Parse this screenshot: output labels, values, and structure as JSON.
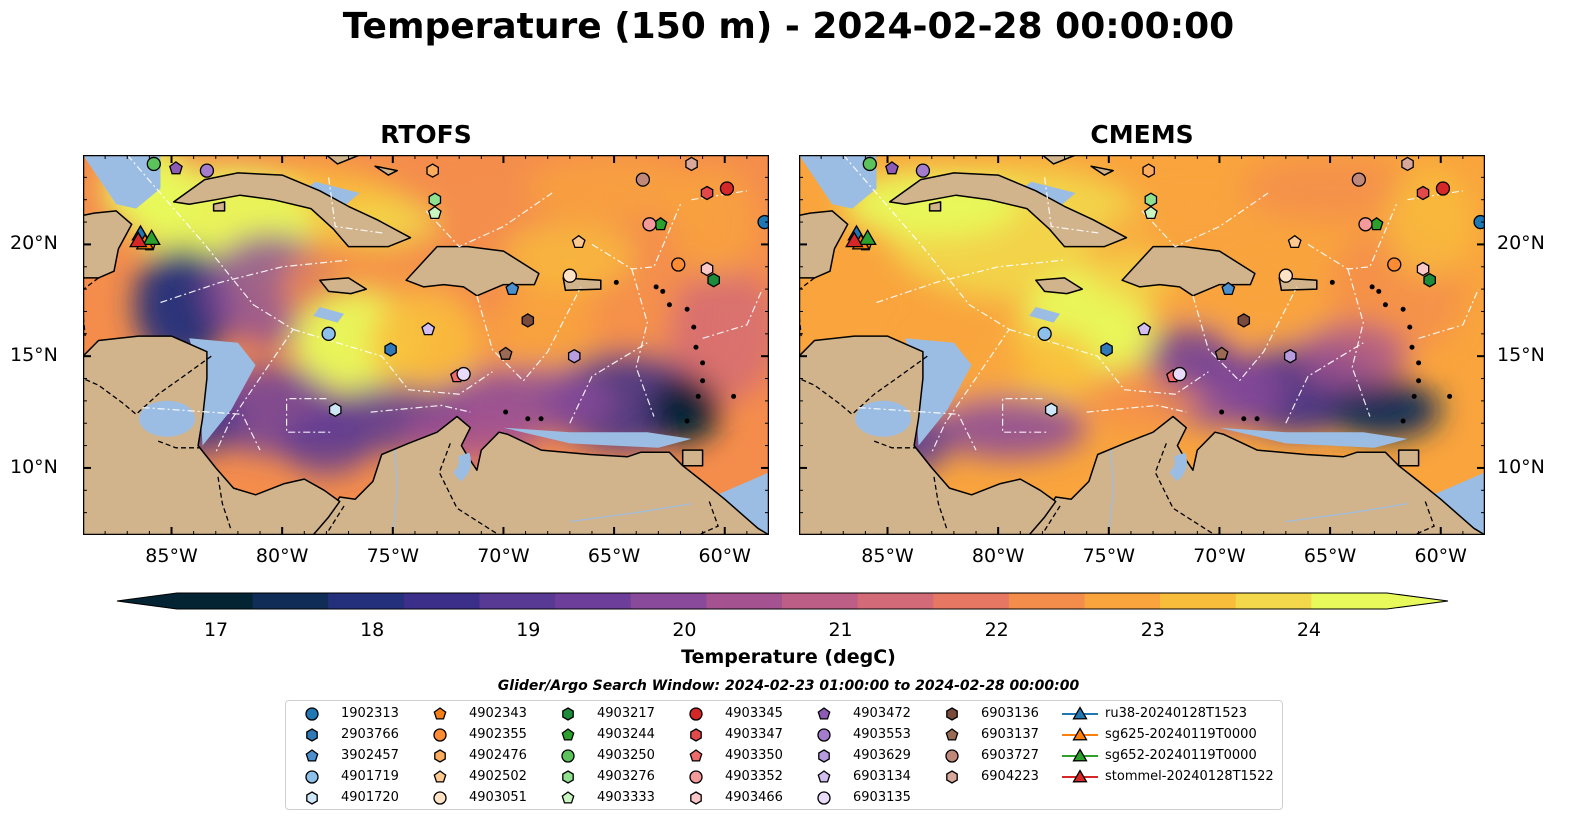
{
  "title": "Temperature (150 m) - 2024-02-28 00:00:00",
  "panels": [
    {
      "title": "RTOFS",
      "variant": "rtofs"
    },
    {
      "title": "CMEMS",
      "variant": "cmems"
    }
  ],
  "axes": {
    "lon_ticks": [
      "85°W",
      "80°W",
      "75°W",
      "70°W",
      "65°W",
      "60°W"
    ],
    "lat_ticks": [
      "20°N",
      "15°N",
      "10°N"
    ],
    "lon_values": [
      -85,
      -80,
      -75,
      -70,
      -65,
      -60
    ],
    "lat_values": [
      20,
      15,
      10
    ],
    "lon_range": [
      -89,
      -58
    ],
    "lat_range": [
      7,
      24
    ]
  },
  "colorbar": {
    "label": "Temperature (degC)",
    "ticks": [
      "17",
      "18",
      "19",
      "20",
      "21",
      "22",
      "23",
      "24"
    ],
    "tick_values": [
      17,
      18,
      19,
      20,
      21,
      22,
      23,
      24
    ],
    "range": [
      16.75,
      24.5
    ],
    "extend": "both",
    "colormap": "thermal",
    "colors": [
      "#042333",
      "#0f2d56",
      "#24307b",
      "#3b2f8a",
      "#583a95",
      "#6e3f9a",
      "#8a4a9b",
      "#a45290",
      "#bc5e85",
      "#d36a77",
      "#e67762",
      "#f48d4c",
      "#f9a43d",
      "#f9bd3c",
      "#f2d84a",
      "#e8fa5b"
    ]
  },
  "search_window": "Glider/Argo Search Window: 2024-02-23 01:00:00 to 2024-02-28 00:00:00",
  "legend": [
    {
      "label": "1902313",
      "marker": "circle",
      "color": "#1f77b4"
    },
    {
      "label": "2903766",
      "marker": "hexagon",
      "color": "#2f79b8"
    },
    {
      "label": "3902457",
      "marker": "pentagon",
      "color": "#4a8fce"
    },
    {
      "label": "4901719",
      "marker": "circle",
      "color": "#8dc0ea"
    },
    {
      "label": "4901720",
      "marker": "hexagon",
      "color": "#cfe6f7"
    },
    {
      "label": "4902343",
      "marker": "pentagon",
      "color": "#f57f17"
    },
    {
      "label": "4902355",
      "marker": "circle",
      "color": "#fb8c34"
    },
    {
      "label": "4902476",
      "marker": "hexagon",
      "color": "#fdab5c"
    },
    {
      "label": "4902502",
      "marker": "pentagon",
      "color": "#fdc98f"
    },
    {
      "label": "4903051",
      "marker": "circle",
      "color": "#fde2c6"
    },
    {
      "label": "4903217",
      "marker": "hexagon",
      "color": "#1e8b3a"
    },
    {
      "label": "4903244",
      "marker": "pentagon",
      "color": "#2ca02c"
    },
    {
      "label": "4903250",
      "marker": "circle",
      "color": "#5cc25c"
    },
    {
      "label": "4903276",
      "marker": "hexagon",
      "color": "#8fe08f"
    },
    {
      "label": "4903333",
      "marker": "pentagon",
      "color": "#c8f5c0"
    },
    {
      "label": "4903345",
      "marker": "circle",
      "color": "#d62728"
    },
    {
      "label": "4903347",
      "marker": "hexagon",
      "color": "#e24a4a"
    },
    {
      "label": "4903350",
      "marker": "pentagon",
      "color": "#ef6a6a"
    },
    {
      "label": "4903352",
      "marker": "circle",
      "color": "#f59a9a"
    },
    {
      "label": "4903466",
      "marker": "hexagon",
      "color": "#fbc8c8"
    },
    {
      "label": "4903472",
      "marker": "pentagon",
      "color": "#8c5bb5"
    },
    {
      "label": "4903553",
      "marker": "circle",
      "color": "#a37ccc"
    },
    {
      "label": "4903629",
      "marker": "hexagon",
      "color": "#b99be0"
    },
    {
      "label": "6903134",
      "marker": "pentagon",
      "color": "#d2bff0"
    },
    {
      "label": "6903135",
      "marker": "circle",
      "color": "#e8dcfa"
    },
    {
      "label": "6903136",
      "marker": "hexagon",
      "color": "#7a4a3a"
    },
    {
      "label": "6903137",
      "marker": "pentagon",
      "color": "#9a6a55"
    },
    {
      "label": "6903727",
      "marker": "circle",
      "color": "#c08878"
    },
    {
      "label": "6904223",
      "marker": "hexagon",
      "color": "#d8a89a"
    },
    {
      "label": "ru38-20240128T1523",
      "marker": "triangle-line",
      "color": "#1f77b4"
    },
    {
      "label": "sg625-20240119T0000",
      "marker": "triangle-line",
      "color": "#ff7f0e"
    },
    {
      "label": "sg652-20240119T0000",
      "marker": "triangle-line",
      "color": "#2ca02c"
    },
    {
      "label": "stommel-20240128T1522",
      "marker": "triangle-line",
      "color": "#d62728"
    }
  ],
  "map_colors": {
    "land": "#d2b48c",
    "ocean": "#9cbde3",
    "border": "#000000",
    "eez": "#ffffff"
  },
  "platforms": [
    {
      "id": "1902313",
      "lon": -58.2,
      "lat": 21.0
    },
    {
      "id": "2903766",
      "lon": -75.1,
      "lat": 15.3
    },
    {
      "id": "3902457",
      "lon": -69.6,
      "lat": 18.0
    },
    {
      "id": "4901719",
      "lon": -77.9,
      "lat": 16.0
    },
    {
      "id": "4901720",
      "lon": -77.6,
      "lat": 12.6
    },
    {
      "id": "4902343",
      "lon": -86.0,
      "lat": 20.0
    },
    {
      "id": "4902355",
      "lon": -62.1,
      "lat": 19.1
    },
    {
      "id": "4902476",
      "lon": -73.2,
      "lat": 23.3
    },
    {
      "id": "4902502",
      "lon": -66.6,
      "lat": 20.1
    },
    {
      "id": "4903051",
      "lon": -67.0,
      "lat": 18.6
    },
    {
      "id": "4903217",
      "lon": -60.5,
      "lat": 18.4
    },
    {
      "id": "4903244",
      "lon": -62.9,
      "lat": 20.9
    },
    {
      "id": "4903250",
      "lon": -85.8,
      "lat": 23.6
    },
    {
      "id": "4903276",
      "lon": -73.1,
      "lat": 22.0
    },
    {
      "id": "4903333",
      "lon": -73.1,
      "lat": 21.4
    },
    {
      "id": "4903345",
      "lon": -59.9,
      "lat": 22.5
    },
    {
      "id": "4903347",
      "lon": -60.8,
      "lat": 22.3
    },
    {
      "id": "4903350",
      "lon": -72.1,
      "lat": 14.1
    },
    {
      "id": "4903352",
      "lon": -63.4,
      "lat": 20.9
    },
    {
      "id": "4903466",
      "lon": -60.8,
      "lat": 18.9
    },
    {
      "id": "4903472",
      "lon": -84.8,
      "lat": 23.4
    },
    {
      "id": "4903553",
      "lon": -83.4,
      "lat": 23.3
    },
    {
      "id": "4903629",
      "lon": -66.8,
      "lat": 15.0
    },
    {
      "id": "6903134",
      "lon": -73.4,
      "lat": 16.2
    },
    {
      "id": "6903135",
      "lon": -71.8,
      "lat": 14.2
    },
    {
      "id": "6903136",
      "lon": -68.9,
      "lat": 16.6
    },
    {
      "id": "6903137",
      "lon": -69.9,
      "lat": 15.1
    },
    {
      "id": "6903727",
      "lon": -63.7,
      "lat": 22.9
    },
    {
      "id": "6904223",
      "lon": -61.5,
      "lat": 23.6
    }
  ],
  "gliders": [
    {
      "id": "ru38-20240128T1523",
      "lon": -86.4,
      "lat": 20.5
    },
    {
      "id": "sg625-20240119T0000",
      "lon": -86.2,
      "lat": 20.1
    },
    {
      "id": "sg652-20240119T0000",
      "lon": -85.9,
      "lat": 20.3
    },
    {
      "id": "stommel-20240128T1522",
      "lon": -86.5,
      "lat": 20.2
    }
  ]
}
